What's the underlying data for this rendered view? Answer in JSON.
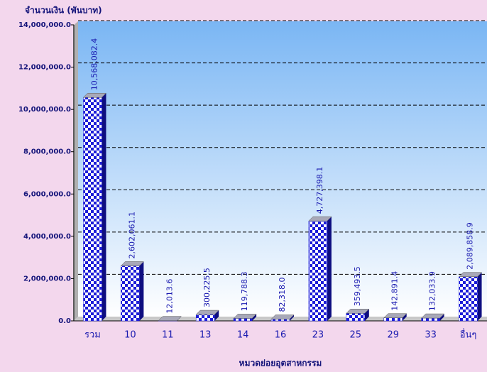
{
  "chart_data": {
    "type": "bar",
    "y_axis_title": "จำนวนเงิน (พันบาท)",
    "x_axis_title": "หมวดย่อยอุตสาหกรรม",
    "categories": [
      "รวม",
      "10",
      "11",
      "13",
      "14",
      "16",
      "23",
      "25",
      "29",
      "33",
      "อื่นๆ"
    ],
    "values": [
      10568082.4,
      2602061.1,
      12013.6,
      300225.5,
      119788.3,
      82318.0,
      4727398.1,
      359493.5,
      142891.4,
      132033.9,
      2089858.9
    ],
    "value_labels": [
      "10,568,082.4",
      "2,602,061.1",
      "12,013.6",
      "300,225.5",
      "119,788.3",
      "82,318.0",
      "4,727,398.1",
      "359,493.5",
      "142,891.4",
      "132,033.9",
      "2,089,858.9"
    ],
    "color": "#1c1cd8",
    "ylim": [
      0,
      14000000
    ],
    "yticks": [
      {
        "value": 0,
        "label": "0.0"
      },
      {
        "value": 2000000,
        "label": "2,000,000.0"
      },
      {
        "value": 4000000,
        "label": "4,000,000.0"
      },
      {
        "value": 6000000,
        "label": "6,000,000.0"
      },
      {
        "value": 8000000,
        "label": "8,000,000.0"
      },
      {
        "value": 10000000,
        "label": "10,000,000.0"
      },
      {
        "value": 12000000,
        "label": "12,000,000.0"
      },
      {
        "value": 14000000,
        "label": "14,000,000.0"
      }
    ],
    "grid": true
  }
}
